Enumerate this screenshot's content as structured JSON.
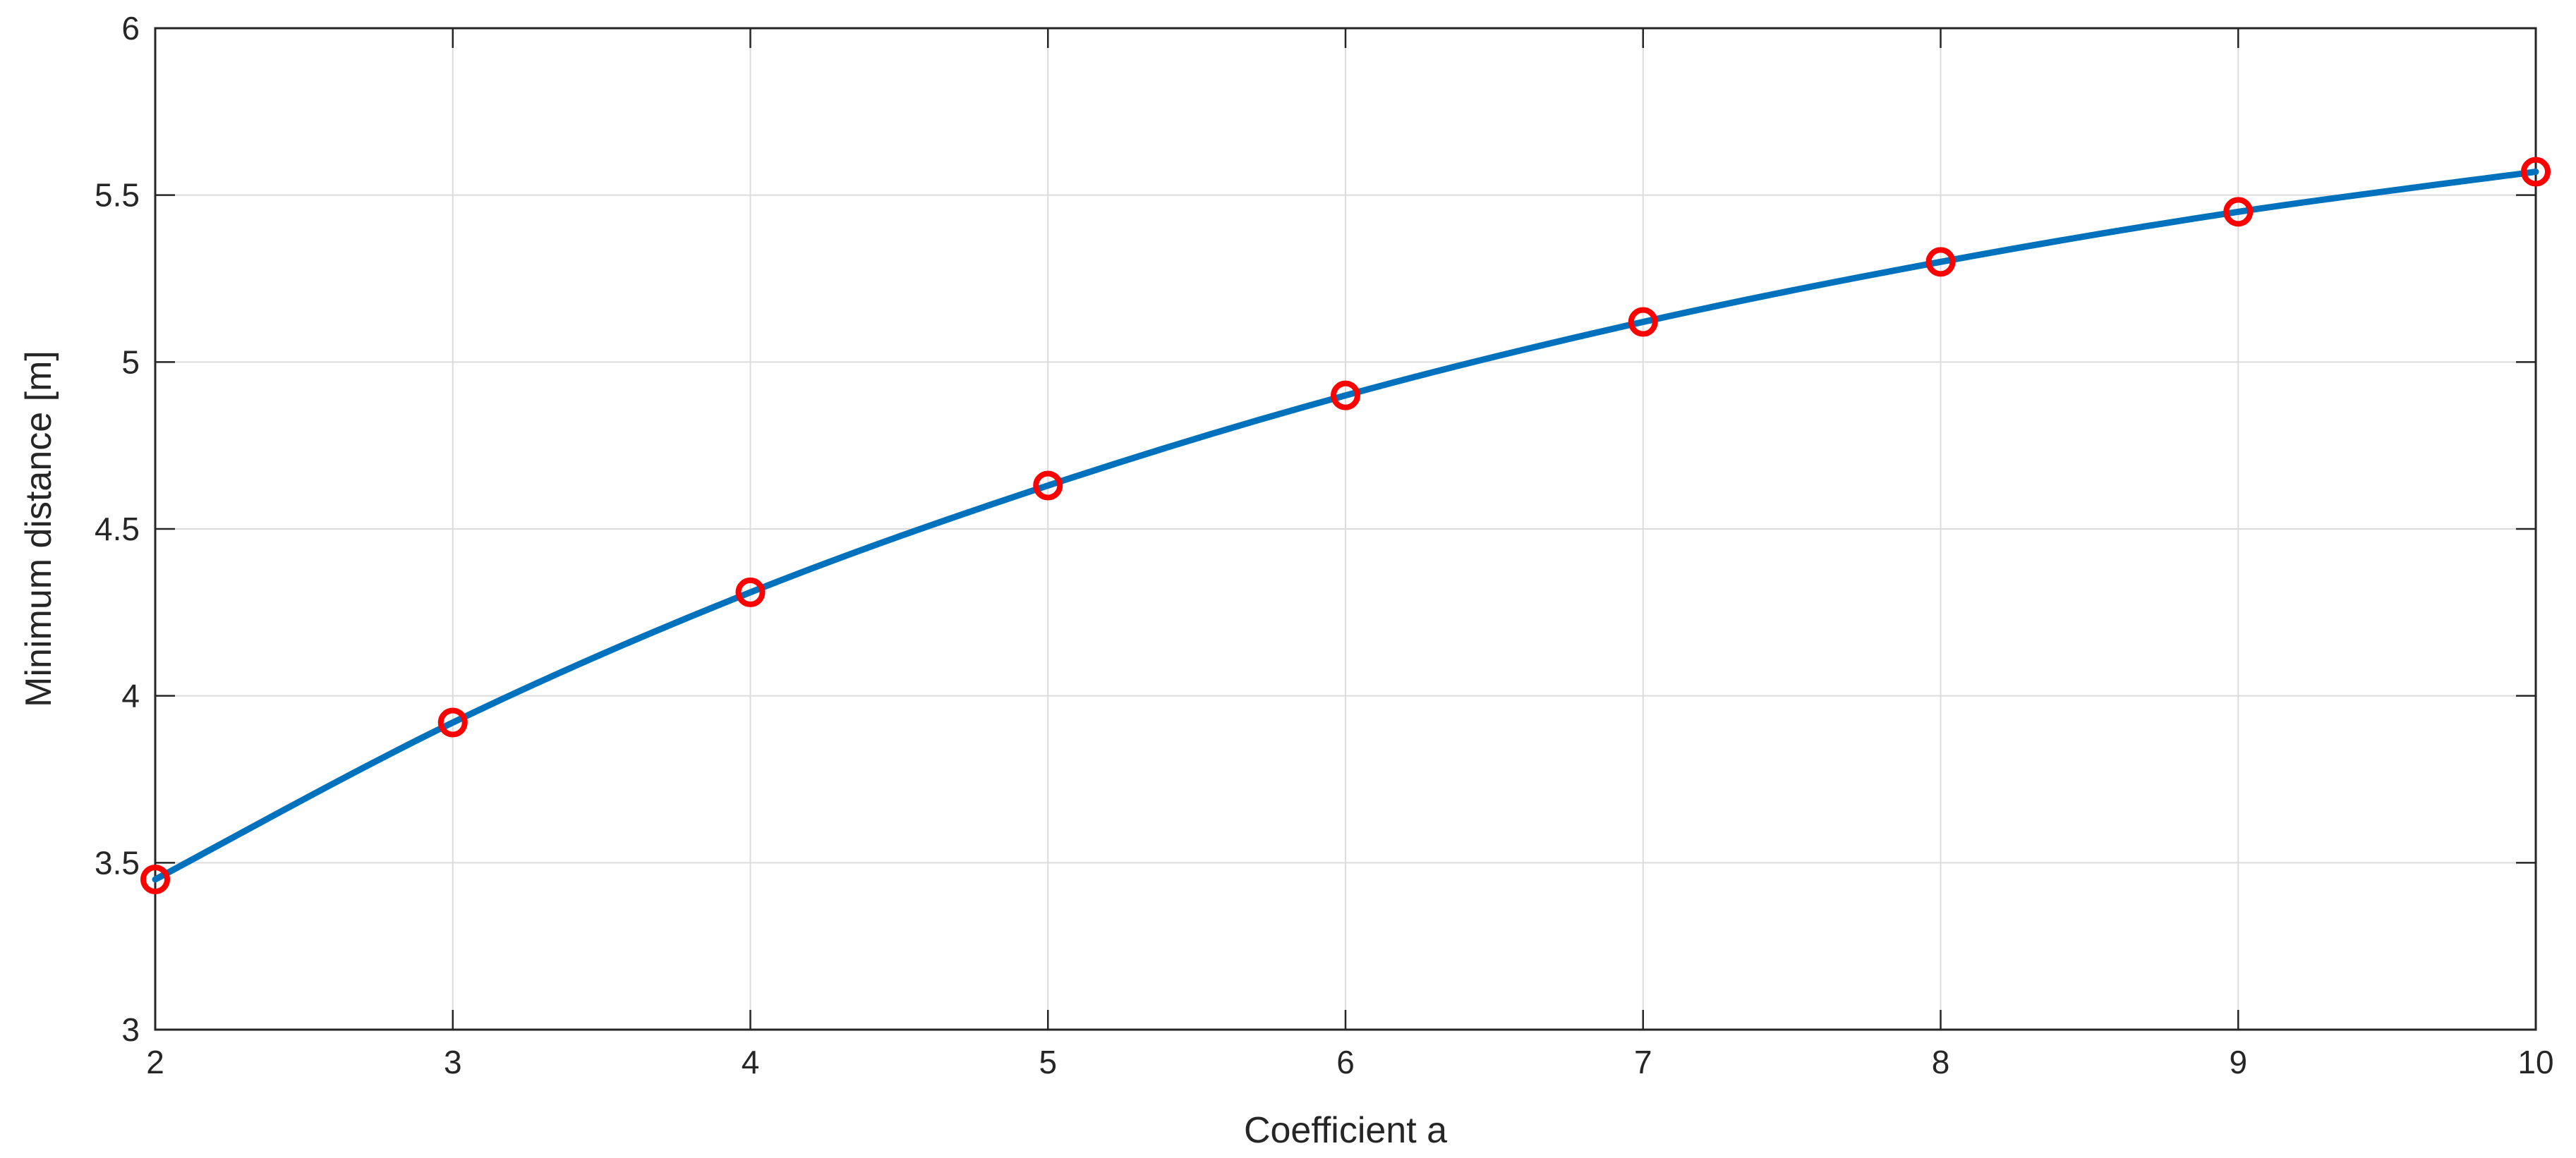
{
  "chart_data": {
    "type": "line",
    "title": "",
    "xlabel": "Coefficient a",
    "ylabel": "Minimum distance [m]",
    "xlim": [
      2,
      10
    ],
    "ylim": [
      3,
      6
    ],
    "xticks": [
      2,
      3,
      4,
      5,
      6,
      7,
      8,
      9,
      10
    ],
    "yticks": [
      3,
      3.5,
      4,
      4.5,
      5,
      5.5,
      6
    ],
    "xtick_labels": [
      "2",
      "3",
      "4",
      "5",
      "6",
      "7",
      "8",
      "9",
      "10"
    ],
    "ytick_labels": [
      "3",
      "3.5",
      "4",
      "4.5",
      "5",
      "5.5",
      "6"
    ],
    "grid": true,
    "series": [
      {
        "x": [
          2,
          3,
          4,
          5,
          6,
          7,
          8,
          9,
          10
        ],
        "y": [
          3.45,
          3.92,
          4.31,
          4.63,
          4.9,
          5.12,
          5.3,
          5.45,
          5.57
        ],
        "line_color": "#0072bd",
        "marker": "circle",
        "marker_color": "#ff0000"
      }
    ]
  }
}
